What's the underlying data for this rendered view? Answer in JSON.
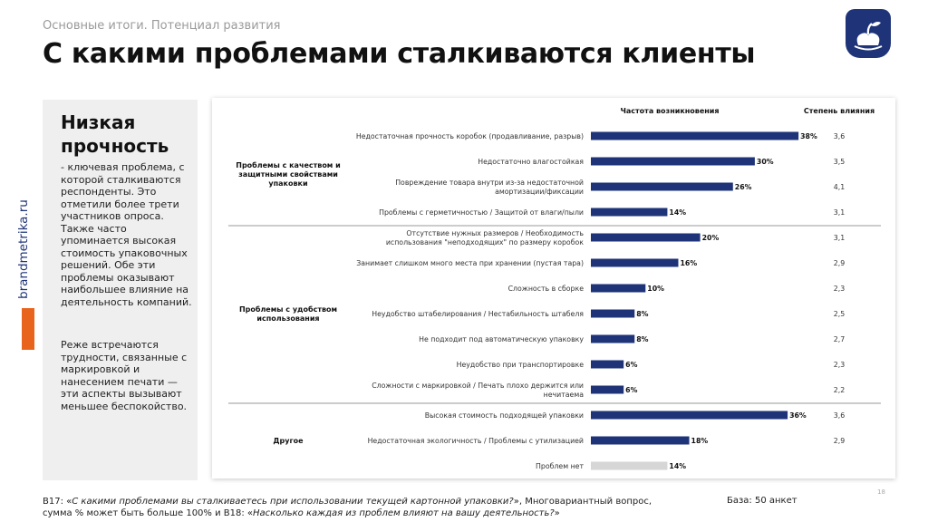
{
  "header": {
    "subtitle": "Основные итоги. Потенциал развития",
    "title": "С какими проблемами сталкиваются клиенты"
  },
  "brand": {
    "site": "brandmetrika.ru",
    "accent": "#e8641c",
    "logo_color": "#1f3478"
  },
  "left_panel": {
    "heading": "Низкая прочность",
    "paragraph1": "- ключевая проблема, с которой сталкиваются респонденты. Это отметили более трети участников опроса. Также часто упоминается высокая стоимость упаковочных решений. Обе эти проблемы оказывают наибольшее влияние на деятельность компаний.",
    "paragraph2": "Реже встречаются трудности, связанные с маркировкой и нанесением печати — эти аспекты вызывают меньшее беспокойство."
  },
  "chart_data": {
    "type": "bar",
    "orientation": "horizontal",
    "column_headers": {
      "frequency": "Частота возникновения",
      "impact": "Степень влияния"
    },
    "xlim": [
      0,
      40
    ],
    "bar_color": "#1f3478",
    "muted_bar_color": "#d6d6d6",
    "groups": [
      {
        "label_lines": [
          "Проблемы с качеством и",
          "защитными свойствами",
          "упаковки"
        ],
        "start": 0,
        "end": 3
      },
      {
        "label_lines": [
          "Проблемы с удобством",
          "использования"
        ],
        "start": 4,
        "end": 10
      },
      {
        "label_lines": [
          "Другое"
        ],
        "start": 11,
        "end": 13
      }
    ],
    "items": [
      {
        "label_lines": [
          "Недостаточная прочность коробок (продавливание, разрыв)"
        ],
        "value": 38,
        "value_label": "38%",
        "impact": "3,6"
      },
      {
        "label_lines": [
          "Недостаточно влагостойкая"
        ],
        "value": 30,
        "value_label": "30%",
        "impact": "3,5"
      },
      {
        "label_lines": [
          "Повреждение товара внутри из-за недостаточной",
          "амортизации/фиксации"
        ],
        "value": 26,
        "value_label": "26%",
        "impact": "4,1"
      },
      {
        "label_lines": [
          "Проблемы с герметичностью / Защитой от влаги/пыли"
        ],
        "value": 14,
        "value_label": "14%",
        "impact": "3,1"
      },
      {
        "label_lines": [
          "Отсутствие нужных размеров / Необходимость",
          "использования \"неподходящих\" по размеру коробок"
        ],
        "value": 20,
        "value_label": "20%",
        "impact": "3,1"
      },
      {
        "label_lines": [
          "Занимает слишком много места при хранении (пустая тара)"
        ],
        "value": 16,
        "value_label": "16%",
        "impact": "2,9"
      },
      {
        "label_lines": [
          "Сложность в сборке"
        ],
        "value": 10,
        "value_label": "10%",
        "impact": "2,3"
      },
      {
        "label_lines": [
          "Неудобство штабелирования / Нестабильность штабеля"
        ],
        "value": 8,
        "value_label": "8%",
        "impact": "2,5"
      },
      {
        "label_lines": [
          "Не подходит под автоматическую упаковку"
        ],
        "value": 8,
        "value_label": "8%",
        "impact": "2,7"
      },
      {
        "label_lines": [
          "Неудобство при транспортировке"
        ],
        "value": 6,
        "value_label": "6%",
        "impact": "2,3"
      },
      {
        "label_lines": [
          "Сложности с маркировкой / Печать плохо держится или",
          "нечитаема"
        ],
        "value": 6,
        "value_label": "6%",
        "impact": "2,2"
      },
      {
        "label_lines": [
          "Высокая стоимость подходящей упаковки"
        ],
        "value": 36,
        "value_label": "36%",
        "impact": "3,6"
      },
      {
        "label_lines": [
          "Недостаточная экологичность / Проблемы с утилизацией"
        ],
        "value": 18,
        "value_label": "18%",
        "impact": "2,9"
      },
      {
        "label_lines": [
          "Проблем нет"
        ],
        "value": 14,
        "value_label": "14%",
        "impact": "",
        "muted": true
      }
    ]
  },
  "footer": {
    "q1_prefix": "B17: «",
    "q1_text": "С какими проблемами вы сталкиваетесь при использовании текущей картонной упаковки?",
    "q1_suffix": "», Многовариантный вопрос, сумма % может быть больше 100% и B18: «",
    "q2_text": "Насколько каждая из проблем влияют на вашу деятельность?",
    "q2_suffix": "»",
    "base": "База: 50 анкет",
    "page_number": "18"
  }
}
